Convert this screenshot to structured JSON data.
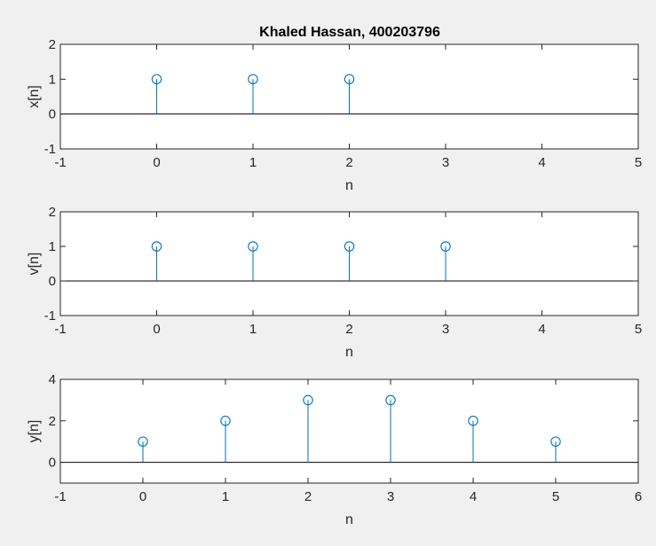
{
  "figure": {
    "background": "#f0f0f0",
    "axes_background": "#ffffff",
    "axes_color": "#262626",
    "stem_color": "#0072bd",
    "baseline_color": "#000000"
  },
  "chart_data": [
    {
      "type": "stem",
      "title": "Khaled Hassan, 400203796",
      "xlabel": "n",
      "ylabel": "x[n]",
      "xlim": [
        -1,
        5
      ],
      "ylim": [
        -1,
        2
      ],
      "xticks": [
        "-1",
        "0",
        "1",
        "2",
        "3",
        "4",
        "5"
      ],
      "yticks": [
        "-1",
        "0",
        "1",
        "2"
      ],
      "x": [
        0,
        1,
        2
      ],
      "y": [
        1,
        1,
        1
      ]
    },
    {
      "type": "stem",
      "title": "",
      "xlabel": "n",
      "ylabel": "v[n]",
      "xlim": [
        -1,
        5
      ],
      "ylim": [
        -1,
        2
      ],
      "xticks": [
        "-1",
        "0",
        "1",
        "2",
        "3",
        "4",
        "5"
      ],
      "yticks": [
        "-1",
        "0",
        "1",
        "2"
      ],
      "x": [
        0,
        1,
        2,
        3
      ],
      "y": [
        1,
        1,
        1,
        1
      ]
    },
    {
      "type": "stem",
      "title": "",
      "xlabel": "n",
      "ylabel": "y[n]",
      "xlim": [
        -1,
        6
      ],
      "ylim": [
        -1,
        4
      ],
      "xticks": [
        "-1",
        "0",
        "1",
        "2",
        "3",
        "4",
        "5",
        "6"
      ],
      "yticks": [
        "0",
        "2",
        "4"
      ],
      "x": [
        0,
        1,
        2,
        3,
        4,
        5
      ],
      "y": [
        1,
        2,
        3,
        3,
        2,
        1
      ]
    }
  ]
}
